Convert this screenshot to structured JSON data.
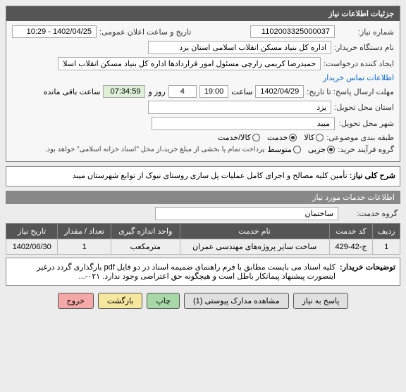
{
  "header": {
    "title": "جزئیات اطلاعات نیاز"
  },
  "form": {
    "need_no_label": "شماره نیاز:",
    "need_no": "1102003325000037",
    "announce_label": "تاریخ و ساعت اعلان عمومی:",
    "announce": "1402/04/25 - 10:29",
    "buyer_label": "نام دستگاه خریدار:",
    "buyer": "اداره کل بنیاد مسکن انقلاب اسلامی استان یزد",
    "requester_label": "ایجاد کننده درخواست:",
    "requester": "حمیدرضا کریمی زارچی مسئول امور قراردادها اداره کل بنیاد مسکن انقلاب اسلا",
    "contact_link": "اطلاعات تماس خریدار",
    "deadline_label": "مهلت ارسال پاسخ: تا تاریخ:",
    "deadline_date": "1402/04/29",
    "time_label": "ساعت",
    "deadline_time": "19:00",
    "days": "4",
    "days_label": "روز و",
    "remaining": "07:34:59",
    "remaining_label": "ساعت باقی مانده",
    "province_label": "استان محل تحویل:",
    "province": "یزد",
    "city_label": "شهر محل تحویل:",
    "city": "میبد",
    "category_label": "طبقه بندی موضوعی:",
    "cat_goods": "کالا",
    "cat_service": "خدمت",
    "cat_both": "کالا/خدمت",
    "process_label": "گروه فرآیند خرید:",
    "proc_minor": "جزیی",
    "proc_medium": "متوسط",
    "proc_note": "پرداخت تمام یا بخشی از مبلغ خرید،از محل \"اسناد خزانه اسلامی\" خواهد بود."
  },
  "need_desc": {
    "label": "شرح کلی نیاز:",
    "text": "تأمین کلیه مصالح و اجرای کامل عملیات پل سازی روستای نیوک از توابع شهرستان میبد"
  },
  "services": {
    "title": "اطلاعات خدمات مورد نیاز",
    "group_label": "گروه خدمت:",
    "group_value": "ساختمان",
    "cols": [
      "ردیف",
      "کد خدمت",
      "نام خدمت",
      "واحد اندازه گیری",
      "تعداد / مقدار",
      "تاریخ نیاز"
    ],
    "row": [
      "1",
      "ج-42-429",
      "ساخت سایر پروژه‌های مهندسی عمران",
      "مترمکعب",
      "1",
      "1402/06/30"
    ]
  },
  "remarks": {
    "label": "توضیحات خریدار:",
    "text": "کلیه اسناد می بایست مطابق با فرم راهنمای ضمیمه اسناد در دو فایل pdf بارگذاری گردد درغیر اینصورت پیشنهاد پیمانکار باطل است و هیچگونه حق اعتراضی وجود ندارد. ۰۲۱-..."
  },
  "buttons": {
    "reply": "پاسخ به نیاز",
    "attachments": "مشاهده مدارک پیوستی (1)",
    "print": "چاپ",
    "back": "بازگشت",
    "exit": "خروج"
  }
}
